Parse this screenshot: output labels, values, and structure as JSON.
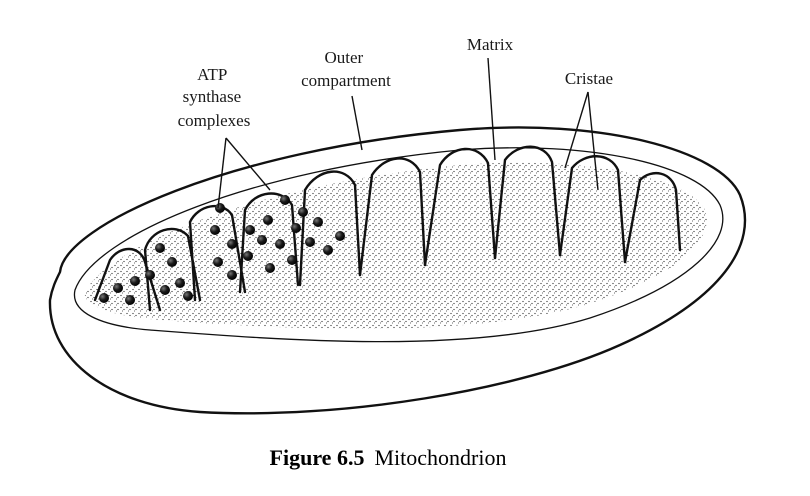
{
  "labels": {
    "atp": [
      "ATP",
      "synthase",
      "complexes"
    ],
    "outer": [
      "Outer",
      "compartment"
    ],
    "matrix": "Matrix",
    "cristae": "Cristae"
  },
  "caption": {
    "number": "Figure 6.5",
    "text": "Mitochondrion"
  }
}
